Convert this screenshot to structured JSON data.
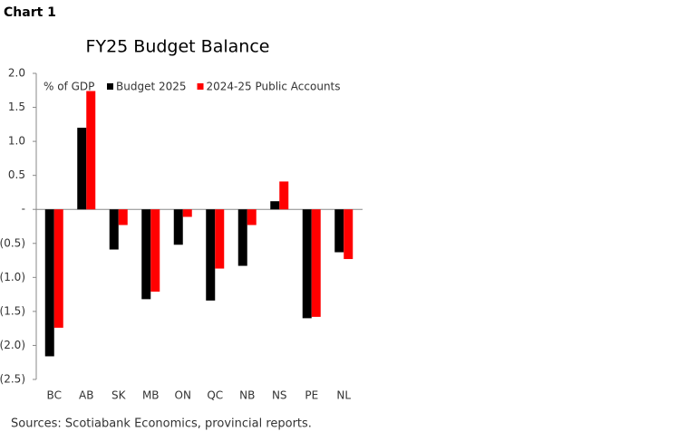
{
  "header": "Chart 1",
  "chart_data": {
    "type": "bar",
    "title": "FY25 Budget Balance",
    "unit_label": "% of GDP",
    "categories": [
      "BC",
      "AB",
      "SK",
      "MB",
      "ON",
      "QC",
      "NB",
      "NS",
      "PE",
      "NL"
    ],
    "series": [
      {
        "name": "Budget 2025",
        "color": "#000000",
        "values": [
          -2.16,
          1.2,
          -0.59,
          -1.32,
          -0.52,
          -1.34,
          -0.83,
          0.12,
          -1.6,
          -0.63
        ]
      },
      {
        "name": "2024-25 Public Accounts",
        "color": "#ff0000",
        "values": [
          -1.74,
          1.74,
          -0.23,
          -1.21,
          -0.11,
          -0.87,
          -0.23,
          0.41,
          -1.58,
          -0.73
        ]
      }
    ],
    "ylim": [
      -2.5,
      2.0
    ],
    "yticks": [
      {
        "value": 2.0,
        "label": "2.0"
      },
      {
        "value": 1.5,
        "label": "1.5"
      },
      {
        "value": 1.0,
        "label": "1.0"
      },
      {
        "value": 0.5,
        "label": "0.5"
      },
      {
        "value": 0,
        "label": "-"
      },
      {
        "value": -0.5,
        "label": "(0.5)"
      },
      {
        "value": -1.0,
        "label": "(1.0)"
      },
      {
        "value": -1.5,
        "label": "(1.5)"
      },
      {
        "value": -2.0,
        "label": "(2.0)"
      },
      {
        "value": -2.5,
        "label": "(2.5)"
      }
    ],
    "grid": false,
    "source": "Sources: Scotiabank Economics, provincial reports."
  }
}
